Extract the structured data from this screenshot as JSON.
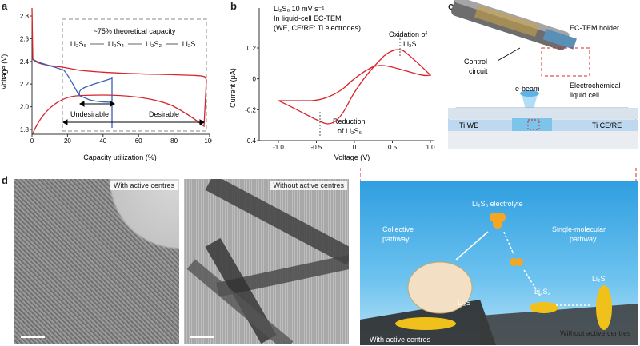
{
  "panel_a": {
    "letter": "a",
    "ylabel": "Voltage (V)",
    "xlabel": "Capacity utilization (%)",
    "yticks": [
      "1.8",
      "2.0",
      "2.2",
      "2.4",
      "2.6",
      "2.8"
    ],
    "xticks": [
      "0",
      "20",
      "40",
      "60",
      "80",
      "100"
    ],
    "capacity_note": "~75% theoretical capacity",
    "chain": [
      "Li₂S₆",
      "Li₂S₄",
      "Li₂S₂",
      "Li₂S"
    ],
    "undesirable": "Undesirable",
    "desirable": "Desirable",
    "colors": {
      "red": "#d6242a",
      "blue": "#3a5fb4"
    }
  },
  "panel_b": {
    "letter": "b",
    "ylabel": "Current (μA)",
    "xlabel": "Voltage (V)",
    "yticks": [
      "-0.4",
      "-0.2",
      "0",
      "0.2"
    ],
    "xticks": [
      "-1.0",
      "-0.5",
      "0",
      "0.5",
      "1.0"
    ],
    "info": [
      "Li₂S₆ 10 mV s⁻¹",
      "In liquid-cell EC-TEM",
      "(WE, CE/RE: Ti electrodes)"
    ],
    "oxidation": [
      "Oxidation of",
      "Li₂S"
    ],
    "reduction": [
      "Reduction",
      "of Li₂S₆"
    ]
  },
  "panel_c": {
    "letter": "c",
    "holder_label": "EC-TEM holder",
    "control_label": [
      "Control",
      "circuit"
    ],
    "ebeam": "e-beam",
    "cell_label": [
      "Electrochemical",
      "liquid cell"
    ],
    "we": "Ti WE",
    "ce": "Ti CE/RE"
  },
  "panel_d": {
    "letter": "d",
    "img1_label": "With active centres",
    "img2_label": "Without active centres",
    "electrolyte": "Li₂S₆ electrolyte",
    "collective": [
      "Collective",
      "pathway"
    ],
    "single": [
      "Single-molecular",
      "pathway"
    ],
    "li2s2": "Li₂S₂",
    "li2s_a": "Li₂S",
    "li2s_b": "Li₂S",
    "with_centres": "With active centres",
    "without_centres": "Without active centres"
  }
}
